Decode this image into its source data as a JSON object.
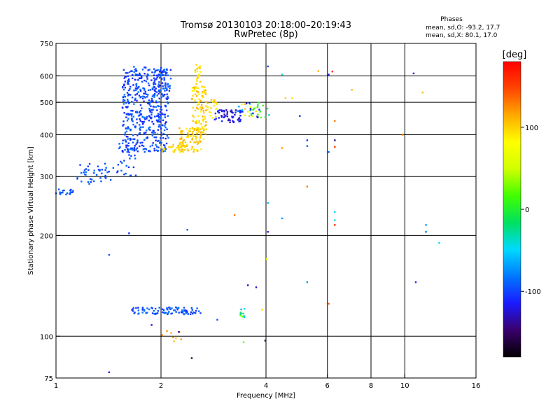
{
  "chart_data": {
    "type": "scatter",
    "title": "Tromsø 20130103 20:18:00–20:19:43",
    "subtitle": "RwPretec (8p)",
    "xlabel": "Frequency [MHz]",
    "ylabel": "Stationary phase Virtual Height [km]",
    "xscale": "log",
    "yscale": "log",
    "xlim": [
      1,
      16
    ],
    "ylim": [
      75,
      750
    ],
    "x_ticks": [
      1,
      2,
      4,
      6,
      8,
      10,
      16
    ],
    "x_tick_labels": [
      "1",
      "2",
      "4",
      "6",
      "8",
      "10",
      "16"
    ],
    "x_grid": [
      2,
      4,
      6,
      8,
      10
    ],
    "y_ticks": [
      75,
      100,
      200,
      300,
      400,
      500,
      600,
      750
    ],
    "y_tick_labels": [
      "75",
      "100",
      "200",
      "300",
      "400",
      "500",
      "600",
      "750"
    ],
    "y_grid": [
      100,
      200,
      300,
      400,
      500,
      600
    ],
    "grid": true,
    "stats": {
      "label": "Phases",
      "line_o": "mean, sd,O: -93.2, 17.7",
      "line_x": "mean, sd,X:  80.1, 17.0"
    },
    "colorbar": {
      "label": "[deg]",
      "min": -180,
      "max": 180,
      "ticks": [
        100,
        0,
        -100
      ],
      "tick_labels": [
        "100",
        "0",
        "-100"
      ],
      "colors": [
        "#000000",
        "#3a006b",
        "#1a1aff",
        "#0077ff",
        "#00d9ff",
        "#00e060",
        "#40ff00",
        "#d0ff00",
        "#ffff00",
        "#ffaa00",
        "#ff4400",
        "#ff0000"
      ]
    },
    "clusters": [
      {
        "name": "",
        "x": [
          1.0,
          1.12
        ],
        "y": [
          264,
          276
        ],
        "phase": [
          -100,
          -85
        ],
        "n": 22
      },
      {
        "name": "",
        "x": [
          1.15,
          1.45
        ],
        "y": [
          285,
          328
        ],
        "phase": [
          -105,
          -85
        ],
        "n": 40
      },
      {
        "name": "",
        "x": [
          1.45,
          1.7
        ],
        "y": [
          300,
          380
        ],
        "phase": [
          -110,
          -85
        ],
        "n": 30
      },
      {
        "name": "",
        "x": [
          1.55,
          2.1
        ],
        "y": [
          355,
          640
        ],
        "phase": [
          -115,
          -80
        ],
        "n": 480
      },
      {
        "name": "",
        "x": [
          1.9,
          2.15
        ],
        "y": [
          540,
          630
        ],
        "phase": [
          -115,
          -85
        ],
        "n": 35
      },
      {
        "name": "",
        "x": [
          2.0,
          2.35
        ],
        "y": [
          355,
          380
        ],
        "phase": [
          85,
          110
        ],
        "n": 30
      },
      {
        "name": "",
        "x": [
          2.25,
          2.65
        ],
        "y": [
          355,
          420
        ],
        "phase": [
          85,
          115
        ],
        "n": 90
      },
      {
        "name": "",
        "x": [
          2.45,
          2.7
        ],
        "y": [
          400,
          560
        ],
        "phase": [
          80,
          115
        ],
        "n": 100
      },
      {
        "name": "",
        "x": [
          2.5,
          2.6
        ],
        "y": [
          560,
          650
        ],
        "phase": [
          85,
          110
        ],
        "n": 20
      },
      {
        "name": "",
        "x": [
          2.7,
          2.9
        ],
        "y": [
          445,
          510
        ],
        "phase": [
          80,
          110
        ],
        "n": 20
      },
      {
        "name": "",
        "x": [
          2.85,
          3.4
        ],
        "y": [
          435,
          475
        ],
        "phase": [
          -135,
          -105
        ],
        "n": 55
      },
      {
        "name": "",
        "x": [
          3.3,
          4.1
        ],
        "y": [
          450,
          500
        ],
        "phase": [
          -130,
          110
        ],
        "n": 40
      },
      {
        "name": "",
        "x": [
          1.65,
          2.6
        ],
        "y": [
          116,
          122
        ],
        "phase": [
          -110,
          -80
        ],
        "n": 90
      },
      {
        "name": "",
        "x": [
          3.35,
          3.55
        ],
        "y": [
          114,
          122
        ],
        "phase": [
          -80,
          30
        ],
        "n": 12
      },
      {
        "name": "",
        "x": [
          2.0,
          2.45
        ],
        "y": [
          94,
          104
        ],
        "phase": [
          100,
          130
        ],
        "n": 8
      }
    ],
    "points": [
      {
        "x": 1.42,
        "y": 78,
        "phase": -120
      },
      {
        "x": 1.42,
        "y": 175,
        "phase": -95
      },
      {
        "x": 1.62,
        "y": 203,
        "phase": -110
      },
      {
        "x": 2.38,
        "y": 208,
        "phase": -90
      },
      {
        "x": 2.45,
        "y": 86,
        "phase": -160
      },
      {
        "x": 1.88,
        "y": 108,
        "phase": -120
      },
      {
        "x": 2.25,
        "y": 103,
        "phase": -140
      },
      {
        "x": 2.9,
        "y": 112,
        "phase": -95
      },
      {
        "x": 3.25,
        "y": 230,
        "phase": 130
      },
      {
        "x": 3.45,
        "y": 96,
        "phase": 30
      },
      {
        "x": 3.55,
        "y": 142,
        "phase": -130
      },
      {
        "x": 3.75,
        "y": 140,
        "phase": -125
      },
      {
        "x": 3.9,
        "y": 120,
        "phase": 95
      },
      {
        "x": 3.98,
        "y": 97,
        "phase": -160
      },
      {
        "x": 4.05,
        "y": 205,
        "phase": -115
      },
      {
        "x": 4.05,
        "y": 250,
        "phase": -60
      },
      {
        "x": 4.02,
        "y": 170,
        "phase": 60
      },
      {
        "x": 4.05,
        "y": 640,
        "phase": -100
      },
      {
        "x": 4.45,
        "y": 605,
        "phase": -40
      },
      {
        "x": 4.45,
        "y": 225,
        "phase": -70
      },
      {
        "x": 4.45,
        "y": 365,
        "phase": 120
      },
      {
        "x": 4.55,
        "y": 515,
        "phase": 100
      },
      {
        "x": 4.75,
        "y": 515,
        "phase": 90
      },
      {
        "x": 5.0,
        "y": 455,
        "phase": -110
      },
      {
        "x": 5.25,
        "y": 385,
        "phase": -110
      },
      {
        "x": 5.25,
        "y": 370,
        "phase": -90
      },
      {
        "x": 5.25,
        "y": 280,
        "phase": 130
      },
      {
        "x": 5.25,
        "y": 145,
        "phase": -70
      },
      {
        "x": 5.65,
        "y": 620,
        "phase": 110
      },
      {
        "x": 6.05,
        "y": 605,
        "phase": -120
      },
      {
        "x": 6.05,
        "y": 355,
        "phase": -90
      },
      {
        "x": 6.05,
        "y": 125,
        "phase": 140
      },
      {
        "x": 6.2,
        "y": 618,
        "phase": 170
      },
      {
        "x": 6.3,
        "y": 385,
        "phase": -140
      },
      {
        "x": 6.3,
        "y": 368,
        "phase": 150
      },
      {
        "x": 6.3,
        "y": 440,
        "phase": 130
      },
      {
        "x": 6.3,
        "y": 235,
        "phase": -50
      },
      {
        "x": 6.3,
        "y": 222,
        "phase": -40
      },
      {
        "x": 6.3,
        "y": 215,
        "phase": 160
      },
      {
        "x": 7.05,
        "y": 545,
        "phase": 110
      },
      {
        "x": 9.85,
        "y": 400,
        "phase": 130
      },
      {
        "x": 10.6,
        "y": 610,
        "phase": -120
      },
      {
        "x": 10.75,
        "y": 145,
        "phase": -110
      },
      {
        "x": 11.25,
        "y": 535,
        "phase": 110
      },
      {
        "x": 11.5,
        "y": 215,
        "phase": -70
      },
      {
        "x": 11.5,
        "y": 205,
        "phase": -80
      },
      {
        "x": 12.55,
        "y": 190,
        "phase": -50
      }
    ]
  }
}
